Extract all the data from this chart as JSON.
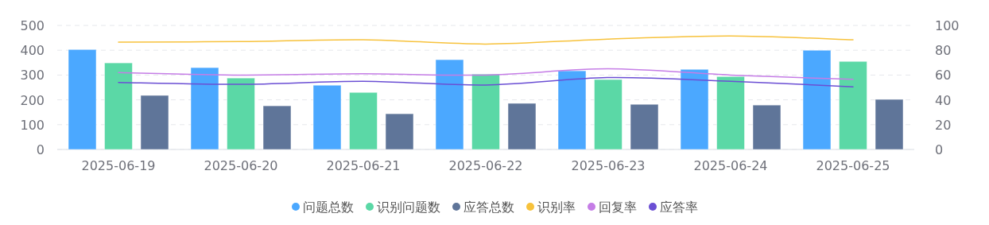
{
  "chart_data": {
    "type": "bar",
    "categories": [
      "2025-06-19",
      "2025-06-20",
      "2025-06-21",
      "2025-06-22",
      "2025-06-23",
      "2025-06-24",
      "2025-06-25"
    ],
    "series": [
      {
        "name": "问题总数",
        "color": "#4ba8ff",
        "values": [
          403,
          330,
          259,
          362,
          317,
          323,
          400
        ]
      },
      {
        "name": "识别问题数",
        "color": "#5bd8a6",
        "values": [
          349,
          288,
          230,
          304,
          282,
          294,
          355
        ]
      },
      {
        "name": "应答总数",
        "color": "#5f7599",
        "values": [
          218,
          176,
          144,
          186,
          182,
          179,
          202
        ]
      },
      {
        "name": "识别率",
        "color": "#f7c23c",
        "type": "line",
        "axis": "y2",
        "values": [
          86.5,
          87,
          88.5,
          85,
          89,
          91.5,
          88.5
        ]
      },
      {
        "name": "回复率",
        "color": "#c57de6",
        "type": "line",
        "axis": "y2",
        "values": [
          62,
          60,
          61,
          60,
          65,
          60,
          56.5
        ]
      },
      {
        "name": "应答率",
        "color": "#6b4fd4",
        "type": "line",
        "axis": "y2",
        "values": [
          54,
          52.5,
          55,
          52,
          58,
          55,
          50.5
        ]
      }
    ],
    "ylim": [
      0,
      500
    ],
    "yticks": [
      0,
      100,
      200,
      300,
      400,
      500
    ],
    "y2lim": [
      0,
      100
    ],
    "y2ticks": [
      0,
      20,
      40,
      60,
      80,
      100
    ],
    "grid": "y",
    "legend": "bottom",
    "marker": "none"
  }
}
